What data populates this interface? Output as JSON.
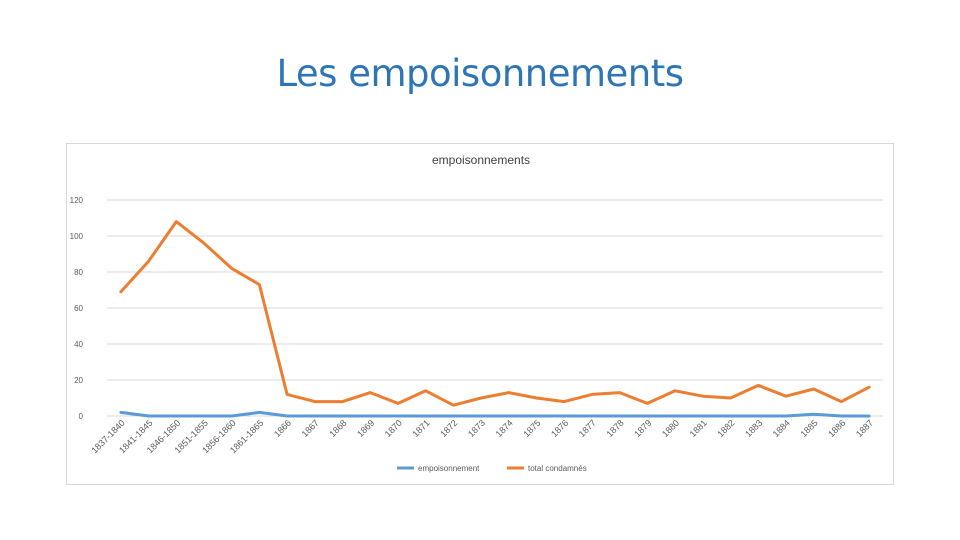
{
  "slide": {
    "title": "Les empoisonnements"
  },
  "chart_data": {
    "type": "line",
    "title": "empoisonnements",
    "xlabel": "",
    "ylabel": "",
    "ylim": [
      0,
      120
    ],
    "yticks": [
      0,
      20,
      40,
      60,
      80,
      100,
      120
    ],
    "grid": true,
    "legend_position": "bottom",
    "categories": [
      "1837-1840",
      "1841-1845",
      "1846-1850",
      "1851-1855",
      "1856-1860",
      "1861-1865",
      "1866",
      "1867",
      "1868",
      "1869",
      "1870",
      "1871",
      "1872",
      "1873",
      "1874",
      "1875",
      "1876",
      "1877",
      "1878",
      "1879",
      "1880",
      "1881",
      "1882",
      "1883",
      "1884",
      "1885",
      "1886",
      "1887"
    ],
    "series": [
      {
        "name": "empoisonnement",
        "color": "#5b9bd5",
        "values": [
          2,
          0,
          0,
          0,
          0,
          2,
          0,
          0,
          0,
          0,
          0,
          0,
          0,
          0,
          0,
          0,
          0,
          0,
          0,
          0,
          0,
          0,
          0,
          0,
          0,
          1,
          0,
          0
        ]
      },
      {
        "name": "total condamnés",
        "color": "#ed7d31",
        "values": [
          69,
          86,
          108,
          96,
          82,
          73,
          12,
          8,
          8,
          13,
          7,
          14,
          6,
          10,
          13,
          10,
          8,
          12,
          13,
          7,
          14,
          11,
          10,
          17,
          11,
          15,
          8,
          16
        ]
      }
    ]
  }
}
